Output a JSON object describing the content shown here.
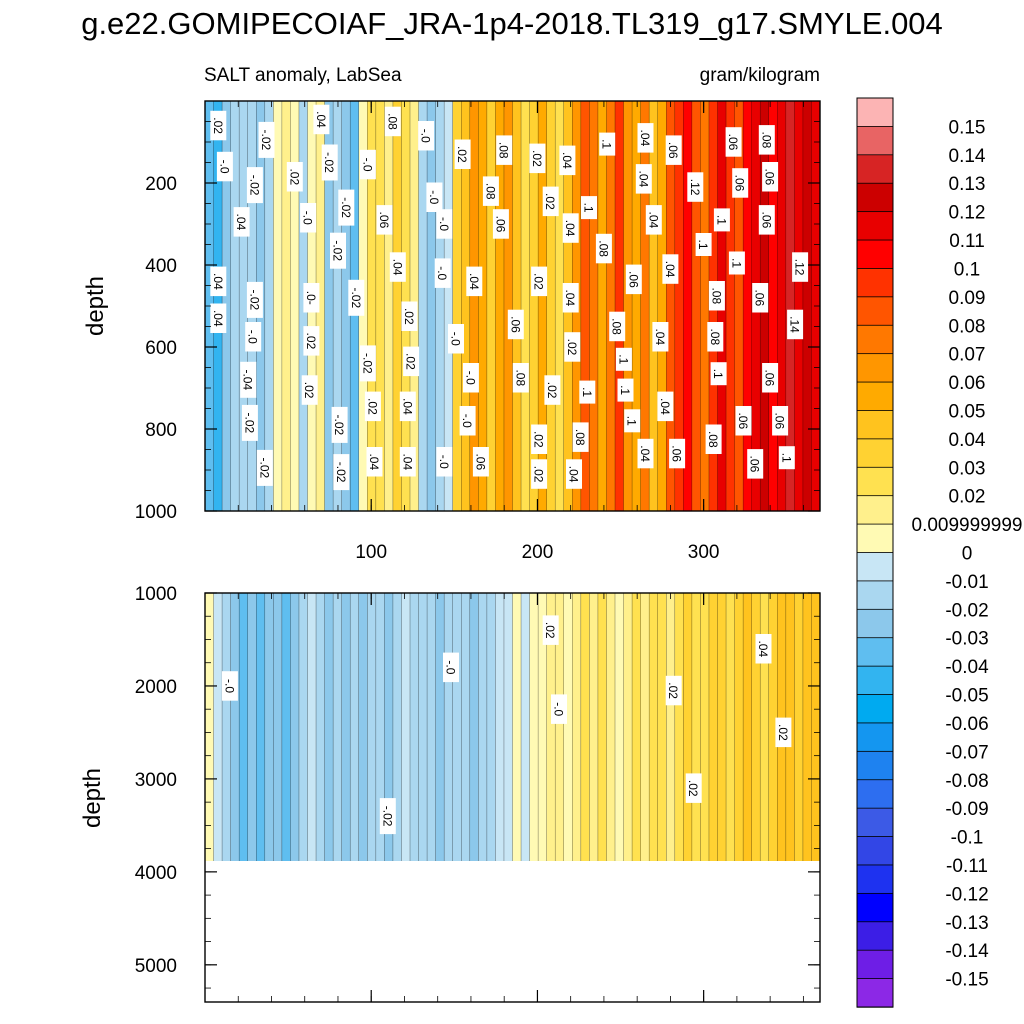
{
  "chart_data": {
    "type": "heatmap",
    "title": "g.e22.GOMIPECOIAF_JRA-1p4-2018.TL319_g17.SMYLE.004",
    "subtitle_left": "SALT anomaly, LabSea",
    "subtitle_right": "gram/kilogram",
    "colorbar": {
      "levels": [
        "0.15",
        "0.14",
        "0.13",
        "0.12",
        "0.11",
        "0.1",
        "0.09",
        "0.08",
        "0.07",
        "0.06",
        "0.05",
        "0.04",
        "0.03",
        "0.02",
        "0.009999999",
        "0",
        "-0.01",
        "-0.02",
        "-0.03",
        "-0.04",
        "-0.05",
        "-0.06",
        "-0.07",
        "-0.08",
        "-0.09",
        "-0.1",
        "-0.11",
        "-0.12",
        "-0.13",
        "-0.14",
        "-0.15"
      ],
      "colors": [
        "#fcb4b4",
        "#e86464",
        "#d72424",
        "#cc0000",
        "#e80000",
        "#ff0000",
        "#ff3200",
        "#ff5500",
        "#ff7800",
        "#ff9600",
        "#ffaa00",
        "#ffc31e",
        "#ffd232",
        "#ffe150",
        "#fff08c",
        "#fffab4",
        "#c8e6f5",
        "#aad7f0",
        "#8cc8eb",
        "#5fbef0",
        "#32b4f0",
        "#00aaf0",
        "#1496f0",
        "#1e82f0",
        "#2d6ef0",
        "#3c5ae6",
        "#3246e6",
        "#1e32f0",
        "#0000ff",
        "#3c1ee6",
        "#6e1ee6",
        "#8c28e6"
      ]
    },
    "panels": [
      {
        "name": "upper",
        "ylabel": "depth",
        "yticks": [
          200,
          400,
          600,
          800,
          1000
        ],
        "ylim": [
          0,
          1000
        ],
        "xticks": [
          100,
          200,
          300
        ],
        "xlim": [
          0,
          370
        ],
        "column_values": [
          -0.03,
          -0.04,
          -0.02,
          -0.01,
          -0.01,
          -0.01,
          -0.02,
          -0.01,
          0.01,
          0.02,
          0.01,
          -0.01,
          0.01,
          0.02,
          -0.02,
          -0.01,
          -0.02,
          -0.03,
          0.01,
          0.03,
          0.03,
          0.02,
          0.04,
          0.03,
          0.02,
          -0.01,
          -0.02,
          -0.01,
          0.0,
          0.04,
          0.05,
          0.07,
          0.06,
          0.04,
          0.06,
          0.07,
          0.05,
          0.03,
          0.04,
          0.06,
          0.04,
          0.03,
          0.05,
          0.07,
          0.09,
          0.08,
          0.06,
          0.08,
          0.1,
          0.07,
          0.06,
          0.08,
          0.05,
          0.06,
          0.09,
          0.1,
          0.11,
          0.09,
          0.08,
          0.1,
          0.12,
          0.1,
          0.09,
          0.11,
          0.12,
          0.13,
          0.11,
          0.12,
          0.14,
          0.12,
          0.13,
          0.12
        ],
        "labels": [
          {
            "text": ".02",
            "x": 8,
            "depth": 60
          },
          {
            "text": "-.02",
            "x": 37,
            "depth": 95
          },
          {
            "text": ".04",
            "x": 70,
            "depth": 45
          },
          {
            "text": ".08",
            "x": 113,
            "depth": 50
          },
          {
            "text": "-.0",
            "x": 133,
            "depth": 85
          },
          {
            "text": ".02",
            "x": 155,
            "depth": 130
          },
          {
            "text": ".08",
            "x": 180,
            "depth": 120
          },
          {
            "text": ".02",
            "x": 200,
            "depth": 140
          },
          {
            "text": ".04",
            "x": 218,
            "depth": 145
          },
          {
            "text": ".1",
            "x": 242,
            "depth": 105
          },
          {
            "text": ".04",
            "x": 265,
            "depth": 90
          },
          {
            "text": ".06",
            "x": 282,
            "depth": 120
          },
          {
            "text": ".06",
            "x": 318,
            "depth": 100
          },
          {
            "text": ".08",
            "x": 338,
            "depth": 95
          },
          {
            "text": "-.0",
            "x": 12,
            "depth": 160
          },
          {
            "text": "-.02",
            "x": 30,
            "depth": 205
          },
          {
            "text": ".02",
            "x": 54,
            "depth": 185
          },
          {
            "text": "-.02",
            "x": 75,
            "depth": 150
          },
          {
            "text": "-.0",
            "x": 98,
            "depth": 155
          },
          {
            "text": "-.0",
            "x": 138,
            "depth": 235
          },
          {
            "text": ".08",
            "x": 172,
            "depth": 220
          },
          {
            "text": ".02",
            "x": 208,
            "depth": 245
          },
          {
            "text": ".04",
            "x": 264,
            "depth": 190
          },
          {
            "text": ".12",
            "x": 295,
            "depth": 210
          },
          {
            "text": ".06",
            "x": 322,
            "depth": 200
          },
          {
            "text": ".06",
            "x": 340,
            "depth": 185
          },
          {
            "text": ".04",
            "x": 22,
            "depth": 295
          },
          {
            "text": "-.0",
            "x": 62,
            "depth": 285
          },
          {
            "text": "-.02",
            "x": 85,
            "depth": 260
          },
          {
            "text": ".06",
            "x": 108,
            "depth": 290
          },
          {
            "text": "-.0",
            "x": 144,
            "depth": 300
          },
          {
            "text": ".06",
            "x": 178,
            "depth": 300
          },
          {
            "text": ".1",
            "x": 231,
            "depth": 260
          },
          {
            "text": ".04",
            "x": 220,
            "depth": 310
          },
          {
            "text": ".04",
            "x": 270,
            "depth": 290
          },
          {
            "text": ".1",
            "x": 311,
            "depth": 290
          },
          {
            "text": ".06",
            "x": 338,
            "depth": 290
          },
          {
            "text": "-.02",
            "x": 80,
            "depth": 365
          },
          {
            "text": ".08",
            "x": 240,
            "depth": 360
          },
          {
            "text": ".1",
            "x": 300,
            "depth": 350
          },
          {
            "text": ".04",
            "x": 280,
            "depth": 410
          },
          {
            "text": ".1",
            "x": 320,
            "depth": 395
          },
          {
            "text": ".12",
            "x": 358,
            "depth": 405
          },
          {
            "text": ".04",
            "x": 8,
            "depth": 440
          },
          {
            "text": ".04",
            "x": 116,
            "depth": 405
          },
          {
            "text": "-.0",
            "x": 143,
            "depth": 420
          },
          {
            "text": ".04",
            "x": 162,
            "depth": 440
          },
          {
            "text": ".02",
            "x": 201,
            "depth": 440
          },
          {
            "text": ".06",
            "x": 258,
            "depth": 435
          },
          {
            "text": "-.02",
            "x": 30,
            "depth": 485
          },
          {
            "text": ".0-",
            "x": 64,
            "depth": 480
          },
          {
            "text": "-.02",
            "x": 91,
            "depth": 480
          },
          {
            "text": ".04",
            "x": 220,
            "depth": 480
          },
          {
            "text": ".08",
            "x": 308,
            "depth": 475
          },
          {
            "text": ".06",
            "x": 334,
            "depth": 480
          },
          {
            "text": ".04",
            "x": 8,
            "depth": 530
          },
          {
            "text": "-.0",
            "x": 29,
            "depth": 575
          },
          {
            "text": ".02",
            "x": 123,
            "depth": 525
          },
          {
            "text": ".06",
            "x": 187,
            "depth": 545
          },
          {
            "text": ".08",
            "x": 248,
            "depth": 550
          },
          {
            "text": ".04",
            "x": 274,
            "depth": 575
          },
          {
            "text": ".08",
            "x": 307,
            "depth": 575
          },
          {
            "text": ".14",
            "x": 355,
            "depth": 545
          },
          {
            "text": ".02",
            "x": 64,
            "depth": 585
          },
          {
            "text": "-.0",
            "x": 151,
            "depth": 580
          },
          {
            "text": ".02",
            "x": 221,
            "depth": 600
          },
          {
            "text": ".1",
            "x": 252,
            "depth": 630
          },
          {
            "text": "-.02",
            "x": 98,
            "depth": 640
          },
          {
            "text": ".02",
            "x": 124,
            "depth": 635
          },
          {
            "text": "-.04",
            "x": 26,
            "depth": 680
          },
          {
            "text": ".1",
            "x": 309,
            "depth": 665
          },
          {
            "text": "-.0",
            "x": 160,
            "depth": 675
          },
          {
            "text": ".08",
            "x": 190,
            "depth": 675
          },
          {
            "text": ".06",
            "x": 340,
            "depth": 675
          },
          {
            "text": ".02",
            "x": 63,
            "depth": 705
          },
          {
            "text": ".02",
            "x": 209,
            "depth": 705
          },
          {
            "text": ".1",
            "x": 230,
            "depth": 710
          },
          {
            "text": ".1",
            "x": 253,
            "depth": 705
          },
          {
            "text": ".02",
            "x": 101,
            "depth": 745
          },
          {
            "text": ".04",
            "x": 122,
            "depth": 745
          },
          {
            "text": ".04",
            "x": 277,
            "depth": 745
          },
          {
            "text": "-.02",
            "x": 27,
            "depth": 785
          },
          {
            "text": "-.02",
            "x": 81,
            "depth": 790
          },
          {
            "text": "-.0",
            "x": 158,
            "depth": 780
          },
          {
            "text": ".1",
            "x": 257,
            "depth": 780
          },
          {
            "text": ".06",
            "x": 324,
            "depth": 780
          },
          {
            "text": ".06",
            "x": 346,
            "depth": 780
          },
          {
            "text": ".08",
            "x": 226,
            "depth": 820
          },
          {
            "text": ".02",
            "x": 201,
            "depth": 825
          },
          {
            "text": ".08",
            "x": 306,
            "depth": 825
          },
          {
            "text": ".04",
            "x": 265,
            "depth": 860
          },
          {
            "text": ".06",
            "x": 284,
            "depth": 860
          },
          {
            "text": ".04",
            "x": 102,
            "depth": 880
          },
          {
            "text": ".04",
            "x": 122,
            "depth": 880
          },
          {
            "text": "-.0",
            "x": 144,
            "depth": 880
          },
          {
            "text": ".06",
            "x": 166,
            "depth": 880
          },
          {
            "text": ".1",
            "x": 350,
            "depth": 870
          },
          {
            "text": ".06",
            "x": 331,
            "depth": 885
          },
          {
            "text": "-.02",
            "x": 36,
            "depth": 895
          },
          {
            "text": "-.02",
            "x": 82,
            "depth": 905
          },
          {
            "text": ".02",
            "x": 201,
            "depth": 910
          },
          {
            "text": ".04",
            "x": 222,
            "depth": 910
          }
        ]
      },
      {
        "name": "lower",
        "ylabel": "depth",
        "yticks": [
          1000,
          2000,
          3000,
          4000,
          5000
        ],
        "ylim": [
          1000,
          5400
        ],
        "data_bottom_depth": 3900,
        "xlim": [
          0,
          370
        ],
        "column_values": [
          0.01,
          0.0,
          -0.01,
          -0.02,
          -0.03,
          -0.02,
          -0.03,
          -0.02,
          -0.02,
          -0.03,
          -0.02,
          -0.01,
          0.0,
          -0.01,
          -0.02,
          -0.01,
          -0.02,
          -0.01,
          -0.02,
          -0.01,
          -0.01,
          -0.02,
          -0.01,
          0.0,
          -0.01,
          -0.01,
          -0.01,
          -0.02,
          -0.01,
          -0.01,
          -0.01,
          -0.02,
          -0.01,
          -0.01,
          0.0,
          0.0,
          0.01,
          0.0,
          0.01,
          0.01,
          0.02,
          0.02,
          0.01,
          0.02,
          0.03,
          0.02,
          0.03,
          0.02,
          0.01,
          0.02,
          0.03,
          0.02,
          0.03,
          0.03,
          0.02,
          0.03,
          0.04,
          0.03,
          0.03,
          0.04,
          0.04,
          0.03,
          0.04,
          0.05,
          0.04,
          0.03,
          0.04,
          0.05,
          0.05,
          0.04,
          0.05,
          0.05
        ],
        "labels": [
          {
            "text": ".02",
            "x": 208,
            "depth": 1400
          },
          {
            "text": "-.0",
            "x": 148,
            "depth": 1800
          },
          {
            "text": ".04",
            "x": 336,
            "depth": 1600
          },
          {
            "text": "-.0",
            "x": 15,
            "depth": 2000
          },
          {
            "text": ".02",
            "x": 282,
            "depth": 2050
          },
          {
            "text": "-.0",
            "x": 213,
            "depth": 2250
          },
          {
            "text": ".02",
            "x": 348,
            "depth": 2500
          },
          {
            "text": ".02",
            "x": 294,
            "depth": 3100
          },
          {
            "text": "-.02",
            "x": 110,
            "depth": 3400
          }
        ]
      }
    ]
  }
}
